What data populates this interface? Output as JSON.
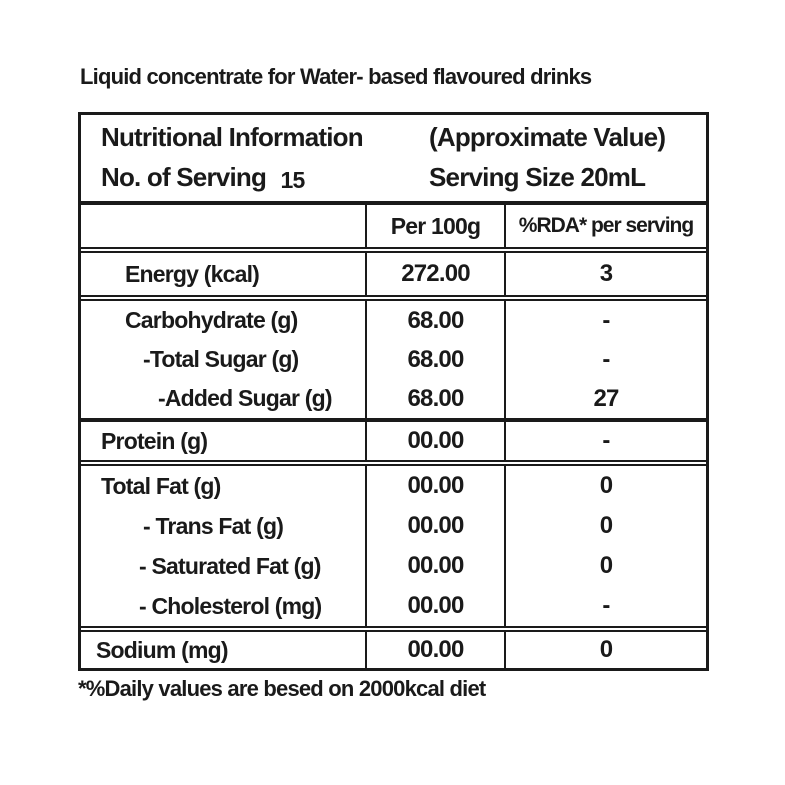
{
  "page": {
    "title": "Liquid concentrate for Water- based flavoured drinks",
    "footnote": "*%Daily values are besed on 2000kcal diet"
  },
  "colors": {
    "ink": "#1a1a1a",
    "background": "#ffffff"
  },
  "table": {
    "header": {
      "title": "Nutritional Information",
      "approx": "(Approximate Value)",
      "servings_label": "No. of Serving",
      "servings_value": "15",
      "serving_size_label": "Serving Size",
      "serving_size_value": "20mL"
    },
    "columns": {
      "label": "",
      "per100g": "Per 100g",
      "rda": "%RDA* per serving"
    },
    "sections": [
      {
        "name": "energy",
        "rows": [
          {
            "label": "Energy (kcal)",
            "per100g": "272.00",
            "rda": "3"
          }
        ]
      },
      {
        "name": "carbohydrate",
        "rows": [
          {
            "label": "Carbohydrate (g)",
            "per100g": "68.00",
            "rda": "-"
          },
          {
            "label": "-Total Sugar (g)",
            "per100g": "68.00",
            "rda": "-"
          },
          {
            "label": "-Added Sugar (g)",
            "per100g": "68.00",
            "rda": "27"
          }
        ]
      },
      {
        "name": "protein",
        "rows": [
          {
            "label": "Protein (g)",
            "per100g": "00.00",
            "rda": "-"
          }
        ]
      },
      {
        "name": "fat",
        "rows": [
          {
            "label": "Total Fat (g)",
            "per100g": "00.00",
            "rda": "0"
          },
          {
            "label": "- Trans Fat (g)",
            "per100g": "00.00",
            "rda": "0"
          },
          {
            "label": "- Saturated Fat (g)",
            "per100g": "00.00",
            "rda": "0"
          },
          {
            "label": "- Cholesterol (mg)",
            "per100g": "00.00",
            "rda": "-"
          }
        ]
      },
      {
        "name": "sodium",
        "rows": [
          {
            "label": "Sodium (mg)",
            "per100g": "00.00",
            "rda": "0"
          }
        ]
      }
    ]
  }
}
